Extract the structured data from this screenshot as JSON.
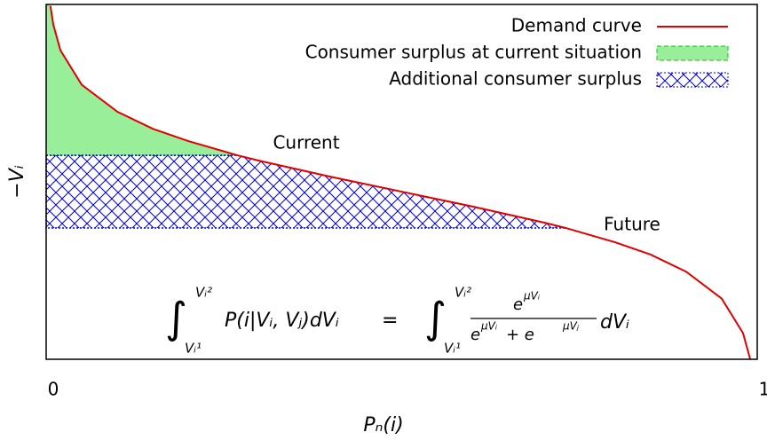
{
  "chart_data": {
    "type": "line",
    "x_label": "Pₙ(i)",
    "y_label": "−Vᵢ",
    "xlim": [
      0,
      1
    ],
    "ylim": [
      -4.61,
      5.15
    ],
    "xticks": [
      0,
      1
    ],
    "series": [
      {
        "name": "Demand curve",
        "color": "#e00000",
        "x": [
          0.006,
          0.01,
          0.02,
          0.05,
          0.1,
          0.15,
          0.2,
          0.269,
          0.3,
          0.4,
          0.5,
          0.6,
          0.7,
          0.731,
          0.8,
          0.85,
          0.9,
          0.95,
          0.98,
          0.99
        ],
        "values": [
          5.11,
          4.6,
          3.89,
          2.94,
          2.2,
          1.73,
          1.39,
          1.0,
          0.85,
          0.41,
          0,
          -0.41,
          -0.85,
          -1.0,
          -1.39,
          -1.73,
          -2.2,
          -2.94,
          -3.89,
          -4.6
        ]
      }
    ],
    "areas": [
      {
        "name": "Consumer surplus at current situation",
        "color": "#99ee99",
        "edge": "#22bb22"
      },
      {
        "name": "Additional consumer surplus",
        "color": "#0000cc"
      }
    ],
    "current_level": 1.0,
    "future_level": -1.0,
    "annotations": {
      "current": "Current",
      "future": "Future"
    },
    "formula": {
      "integral": "∫",
      "upper": "Vᵢ²",
      "lower": "Vᵢ¹",
      "lhs": "P(i|Vᵢ, Vⱼ)dVᵢ",
      "equals": "=",
      "e": "e",
      "num_exp": "μVᵢ",
      "den_exp1": "μVᵢ",
      "plus_e": " + e",
      "den_exp2": "μVⱼ",
      "dv": "dVᵢ"
    },
    "legend": "top-right"
  }
}
